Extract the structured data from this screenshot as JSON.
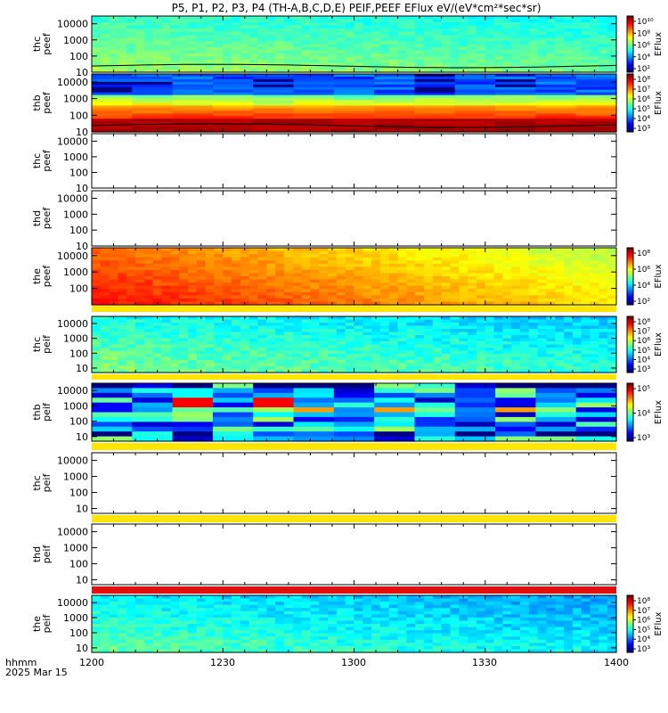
{
  "title": "P5, P1, P2, P3, P4 (TH-A,B,C,D,E) PEIF,PEEF EFlux eV/(eV*cm²*sec*sr)",
  "xaxis": {
    "label_line1": "hhmm",
    "label_line2": "2025 Mar 15",
    "ticks": [
      "1200",
      "1230",
      "1300",
      "1330",
      "1400"
    ]
  },
  "colorbar_label": "EFlux",
  "chart_data": [
    {
      "type": "heatmap",
      "id": "thc-peef",
      "ylabel": [
        "thc",
        "peef"
      ],
      "fill": "spectrogram",
      "ylim": [
        10,
        30000
      ],
      "yscale": "log",
      "yticks": [
        "10000",
        "1000",
        "100",
        "10"
      ],
      "overlay_line": true,
      "has_colorbar": true,
      "colorbar_ticks": [
        "10¹⁰",
        "10⁸",
        "10⁶",
        "10⁴",
        "10²"
      ],
      "base": 0.48,
      "time_trend": -0.05,
      "noise": 0.08
    },
    {
      "type": "heatmap",
      "id": "thb-peef",
      "ylabel": [
        "thb",
        "peef"
      ],
      "fill": "banded",
      "ylim": [
        10,
        30000
      ],
      "yscale": "log",
      "yticks": [
        "10000",
        "1000",
        "100",
        "10"
      ],
      "overlay_line": true,
      "has_colorbar": true,
      "colorbar_ticks": [
        "10⁸",
        "10⁷",
        "10⁶",
        "10⁵",
        "10⁴",
        "10³"
      ]
    },
    {
      "type": "heatmap",
      "id": "thc-peef-2",
      "ylabel": [
        "thc",
        "peef"
      ],
      "fill": "empty",
      "ylim": [
        10,
        30000
      ],
      "yscale": "log",
      "yticks": [
        "10000",
        "1000",
        "100",
        "10"
      ],
      "has_colorbar": false
    },
    {
      "type": "heatmap",
      "id": "thd-peef",
      "ylabel": [
        "thd",
        "peef"
      ],
      "fill": "empty",
      "ylim": [
        10,
        30000
      ],
      "yscale": "log",
      "yticks": [
        "10000",
        "1000",
        "100",
        "10"
      ],
      "has_colorbar": false
    },
    {
      "type": "heatmap",
      "id": "the-peef",
      "ylabel": [
        "the",
        "peef"
      ],
      "fill": "spectrogram",
      "ylim": [
        10,
        30000
      ],
      "yscale": "log",
      "yticks": [
        "10000",
        "1000",
        "100"
      ],
      "has_colorbar": true,
      "colorbar_ticks": [
        "10⁸",
        "10⁶",
        "10⁴",
        "10²"
      ],
      "base": 0.82,
      "time_trend": -0.22,
      "noise": 0.06
    },
    {
      "type": "heatmap",
      "id": "thc-peif",
      "ylabel": [
        "thc",
        "peif"
      ],
      "fill": "spectrogram",
      "ylim": [
        5,
        30000
      ],
      "yscale": "log",
      "yticks": [
        "10000",
        "1000",
        "100",
        "10"
      ],
      "has_colorbar": true,
      "colorbar_ticks": [
        "10⁸",
        "10⁷",
        "10⁶",
        "10⁵",
        "10⁴",
        "10³"
      ],
      "base": 0.45,
      "time_trend": -0.08,
      "noise": 0.1
    },
    {
      "type": "heatmap",
      "id": "thb-peif",
      "ylabel": [
        "thb",
        "peif"
      ],
      "fill": "blocky",
      "ylim": [
        5,
        30000
      ],
      "yscale": "log",
      "yticks": [
        "10000",
        "1000",
        "100",
        "10"
      ],
      "has_colorbar": true,
      "colorbar_ticks": [
        "10⁵",
        "10⁴",
        "10³"
      ]
    },
    {
      "type": "heatmap",
      "id": "thc-peif-2",
      "ylabel": [
        "thc",
        "peif"
      ],
      "fill": "empty",
      "ylim": [
        5,
        30000
      ],
      "yscale": "log",
      "yticks": [
        "10000",
        "1000",
        "100",
        "10"
      ],
      "has_colorbar": false
    },
    {
      "type": "heatmap",
      "id": "thd-peif",
      "ylabel": [
        "thd",
        "peif"
      ],
      "fill": "empty",
      "ylim": [
        5,
        30000
      ],
      "yscale": "log",
      "yticks": [
        "10000",
        "1000",
        "100",
        "10"
      ],
      "has_colorbar": false
    },
    {
      "type": "heatmap",
      "id": "the-peif",
      "ylabel": [
        "the",
        "peif"
      ],
      "fill": "spectrogram",
      "ylim": [
        5,
        30000
      ],
      "yscale": "log",
      "yticks": [
        "10000",
        "1000",
        "100",
        "10"
      ],
      "has_colorbar": true,
      "colorbar_ticks": [
        "10⁸",
        "10⁷",
        "10⁶",
        "10⁵",
        "10⁴",
        "10³"
      ],
      "base": 0.42,
      "time_trend": -0.1,
      "noise": 0.1
    }
  ]
}
